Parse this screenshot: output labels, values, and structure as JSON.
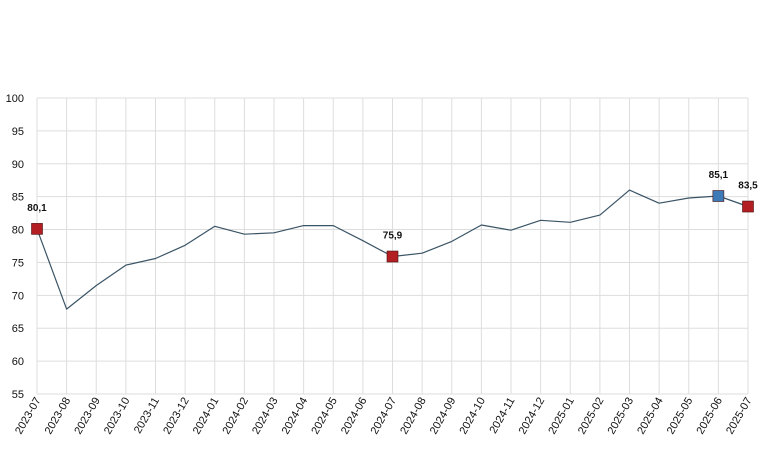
{
  "chart_data": {
    "type": "line",
    "title": "",
    "xlabel": "",
    "ylabel": "",
    "ylim": [
      55,
      100
    ],
    "yticks": [
      55,
      60,
      65,
      70,
      75,
      80,
      85,
      90,
      95,
      100
    ],
    "grid": true,
    "categories": [
      "2023-07",
      "2023-08",
      "2023-09",
      "2023-10",
      "2023-11",
      "2023-12",
      "2024-01",
      "2024-02",
      "2024-03",
      "2024-04",
      "2024-05",
      "2024-06",
      "2024-07",
      "2024-08",
      "2024-09",
      "2024-10",
      "2024-11",
      "2024-12",
      "2025-01",
      "2025-02",
      "2025-03",
      "2025-04",
      "2025-05",
      "2025-06",
      "2025-07"
    ],
    "series": [
      {
        "values": [
          80.1,
          67.9,
          71.5,
          74.6,
          75.6,
          77.6,
          80.5,
          79.3,
          79.5,
          80.6,
          80.6,
          78.3,
          75.9,
          76.4,
          78.2,
          80.7,
          79.9,
          81.4,
          81.1,
          82.2,
          86.0,
          84.0,
          84.8,
          85.1,
          83.5
        ],
        "color": "#3a5466"
      }
    ],
    "highlights": [
      {
        "category": "2023-07",
        "value": 80.1,
        "label": "80,1",
        "color": "#b21e22"
      },
      {
        "category": "2024-07",
        "value": 75.9,
        "label": "75,9",
        "color": "#b21e22"
      },
      {
        "category": "2025-06",
        "value": 85.1,
        "label": "85,1",
        "color": "#3d7bb8"
      },
      {
        "category": "2025-07",
        "value": 83.5,
        "label": "83,5",
        "color": "#b21e22"
      }
    ]
  }
}
